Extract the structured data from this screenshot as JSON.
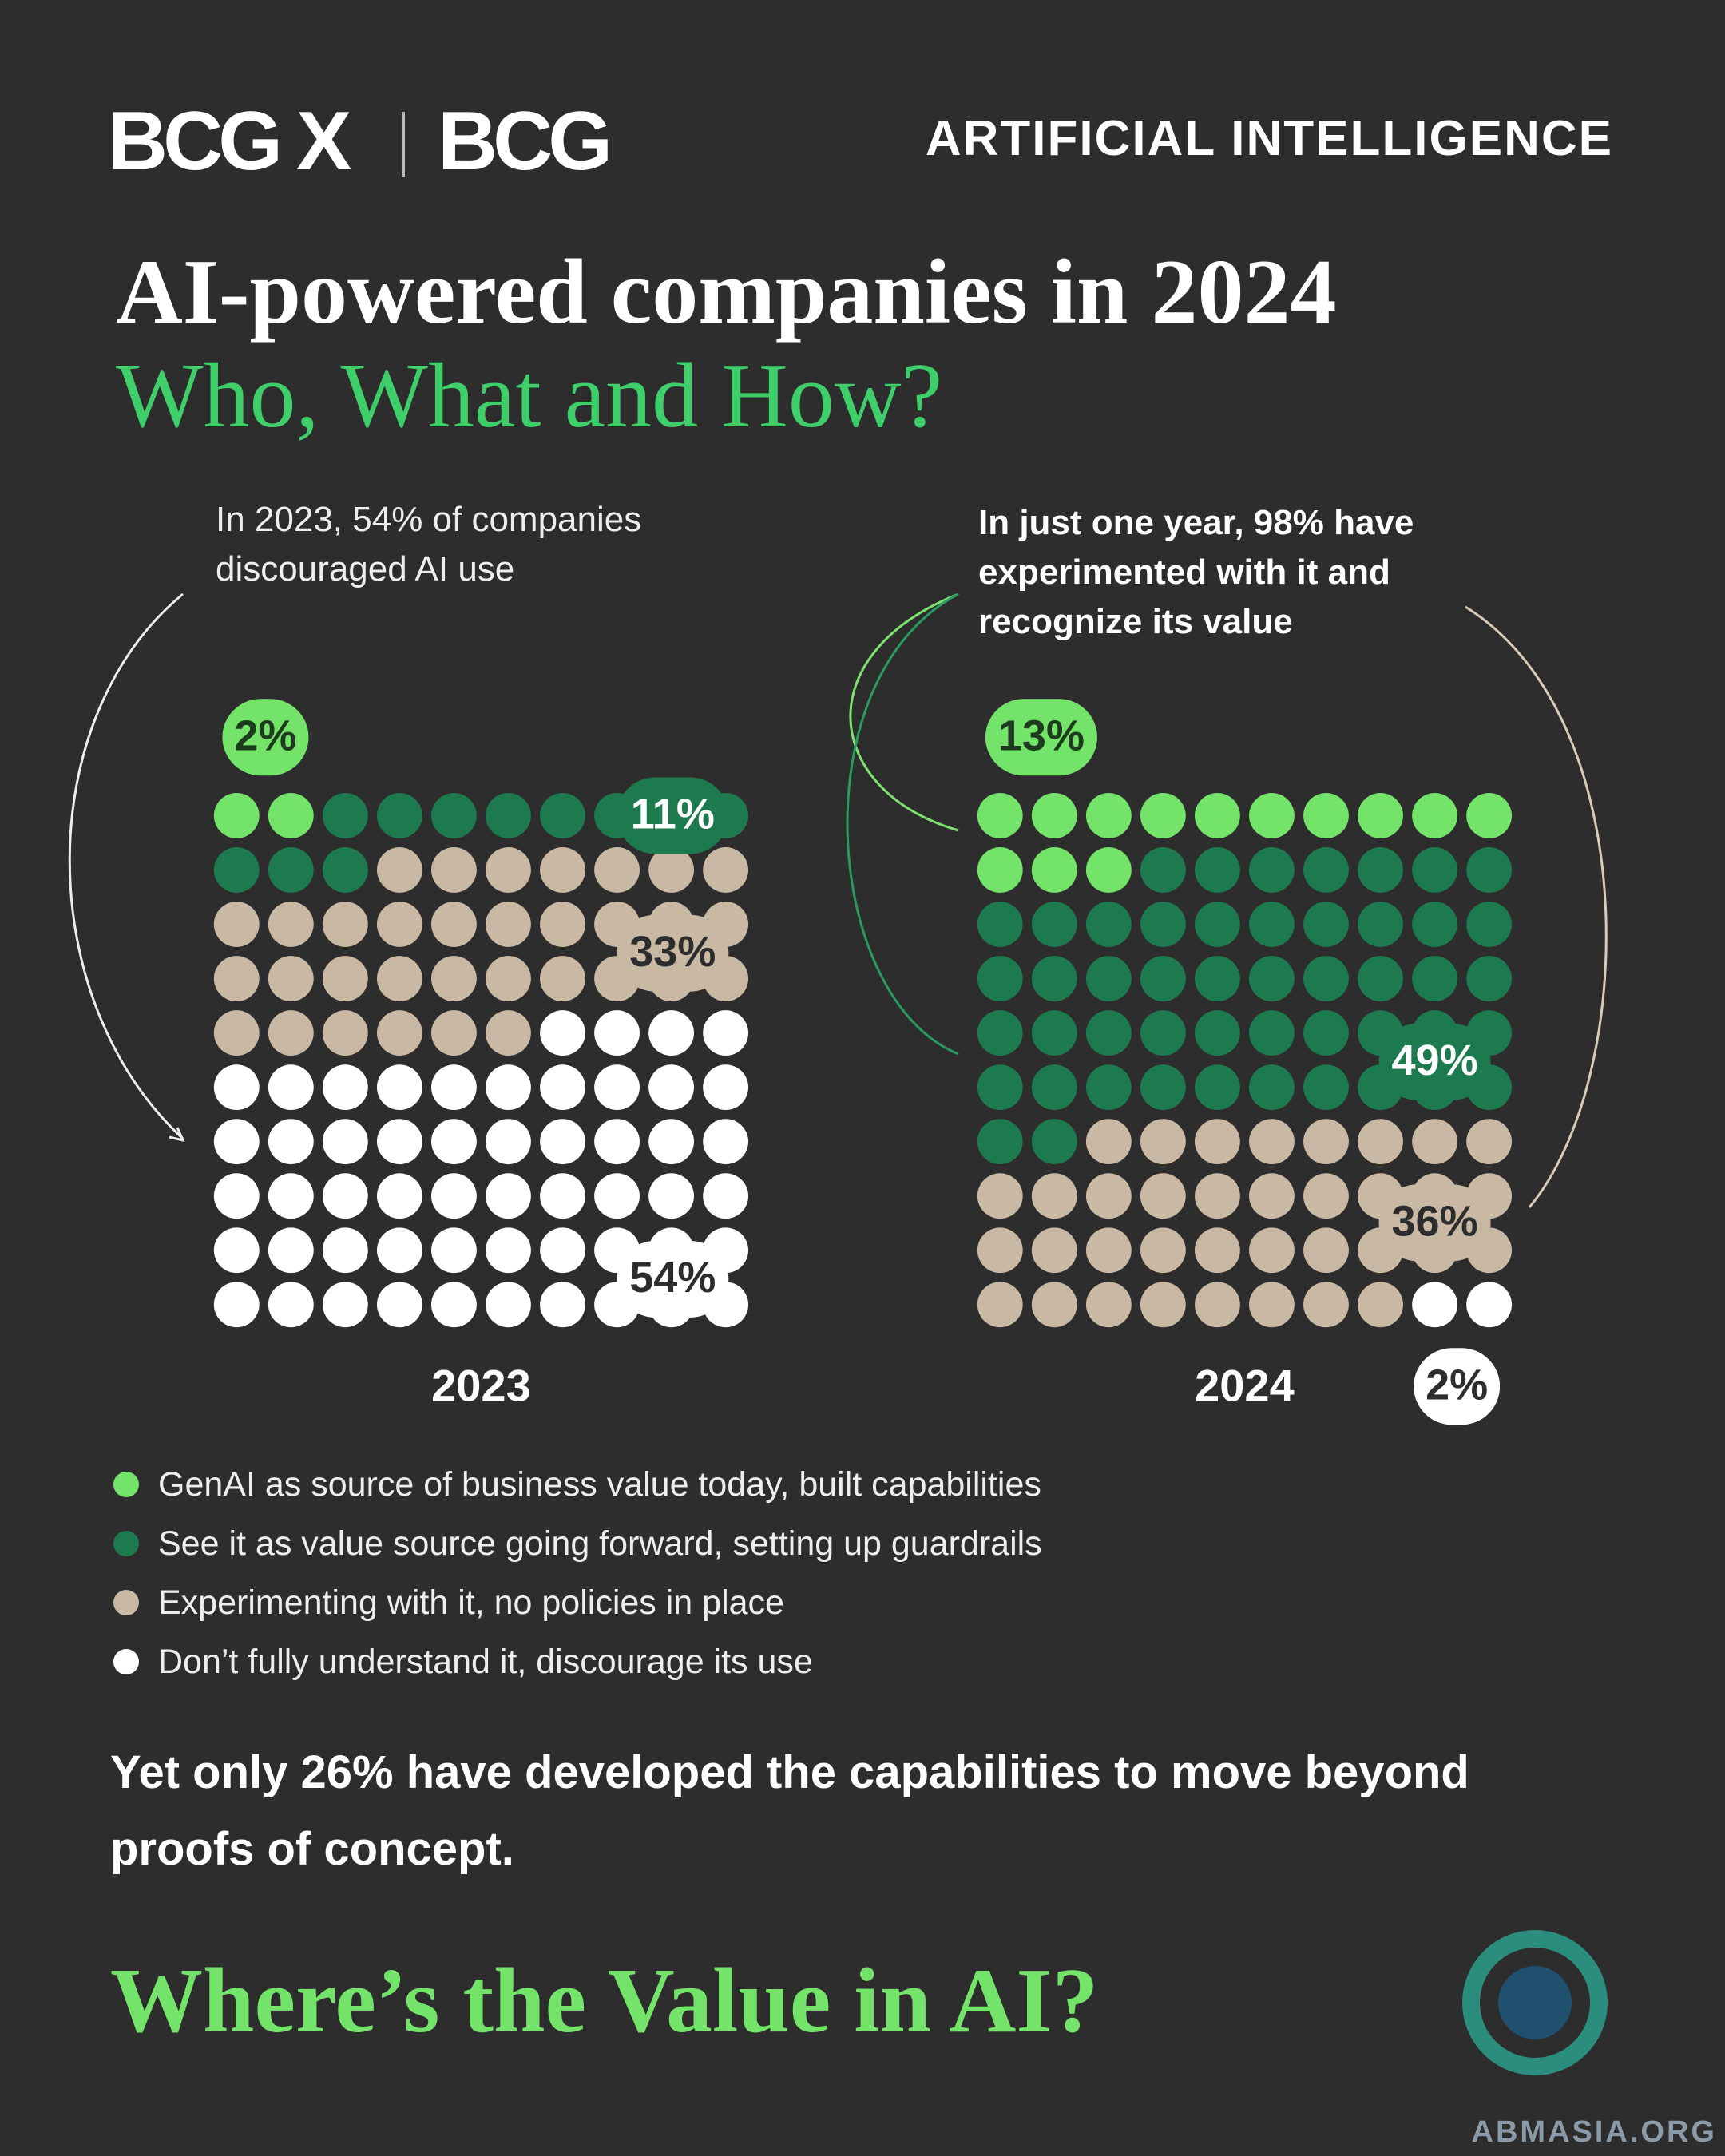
{
  "header": {
    "logo_left": "BCG X",
    "logo_right": "BCG",
    "section": "ARTIFICIAL INTELLIGENCE"
  },
  "title": "AI-powered companies in 2024",
  "subtitle": "Who, What and How?",
  "annotations": [
    "In 2023, 54% of companies discouraged AI use",
    "In just one year, 98% have experimented with it and recognize its value"
  ],
  "chart_data": {
    "type": "waffle",
    "categories": [
      "GenAI as source of business value today, built capabilities",
      "See it as value source going forward, setting up guardrails",
      "Experimenting with it, no policies in place",
      "Don’t fully understand it, discourage its use"
    ],
    "colors": [
      "#74e36a",
      "#1d7a4f",
      "#c9b9a4",
      "#ffffff"
    ],
    "series": [
      {
        "name": "2023",
        "values": [
          2,
          11,
          33,
          54
        ],
        "value_labels": [
          "2%",
          "11%",
          "33%",
          "54%"
        ]
      },
      {
        "name": "2024",
        "values": [
          13,
          49,
          36,
          2
        ],
        "value_labels": [
          "13%",
          "49%",
          "36%",
          "2%"
        ]
      }
    ]
  },
  "footer": {
    "note": "Yet only 26% have developed the capabilities to move beyond proofs of concept.",
    "cta": "Where’s the Value in AI?",
    "watermark": "ABMASIA.ORG"
  }
}
